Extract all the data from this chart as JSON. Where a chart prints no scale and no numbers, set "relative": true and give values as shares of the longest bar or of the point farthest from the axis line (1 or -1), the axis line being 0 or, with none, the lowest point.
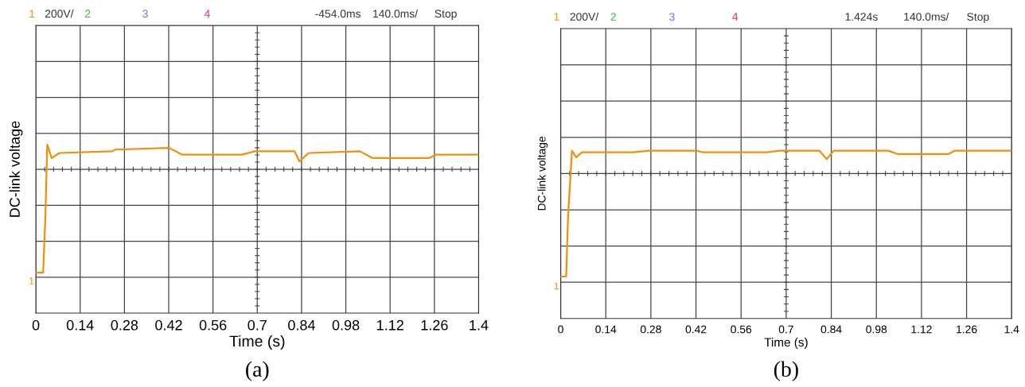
{
  "chart_data": [
    {
      "type": "line",
      "title": "(a)",
      "xlabel": "Time (s)",
      "ylabel": "DC-link voltage",
      "relative": true,
      "tick_labels": "x",
      "grid": true,
      "legend": false,
      "xlim": [
        0,
        1.4
      ],
      "xticks": [
        0,
        0.14,
        0.28,
        0.42,
        0.56,
        0.7,
        0.84,
        0.98,
        1.12,
        1.26,
        1.4
      ],
      "annotations": [
        "1",
        "200V/",
        "2",
        "3",
        "4",
        "-454.0ms",
        "140.0ms/",
        "Stop",
        "1"
      ],
      "series": [
        {
          "color": "#f0900a",
          "x": [
            0,
            0.023,
            0.03,
            0.036,
            0.05,
            0.075,
            0.241,
            0.251,
            0.421,
            0.462,
            0.652,
            0.692,
            0.818,
            0.833,
            0.863,
            1.024,
            1.064,
            1.244,
            1.265,
            1.4
          ],
          "values": [
            0.24,
            0.24,
            0.57,
            1.0,
            0.92,
            0.95,
            0.96,
            0.97,
            0.98,
            0.94,
            0.94,
            0.96,
            0.96,
            0.9,
            0.95,
            0.96,
            0.92,
            0.92,
            0.94,
            0.94
          ]
        }
      ]
    },
    {
      "type": "line",
      "title": "(b)",
      "xlabel": "Time (s)",
      "ylabel": "DC-link voltage",
      "relative": true,
      "tick_labels": "x",
      "grid": true,
      "legend": false,
      "xlim": [
        0,
        1.4
      ],
      "xticks": [
        0,
        0.14,
        0.28,
        0.42,
        0.56,
        0.7,
        0.84,
        0.98,
        1.12,
        1.26,
        1.4
      ],
      "annotations": [
        "1",
        "200V/",
        "2",
        "3",
        "4",
        "1.424s",
        "140.0ms/",
        "Stop",
        "1"
      ],
      "series": [
        {
          "color": "#f0900a",
          "x": [
            0,
            0.017,
            0.023,
            0.035,
            0.048,
            0.066,
            0.225,
            0.274,
            0.422,
            0.442,
            0.64,
            0.68,
            0.803,
            0.826,
            0.848,
            1.016,
            1.046,
            1.204,
            1.224,
            1.4
          ],
          "values": [
            0.25,
            0.25,
            0.61,
            1.0,
            0.96,
            0.99,
            0.99,
            1.0,
            1.0,
            0.99,
            0.99,
            1.0,
            1.0,
            0.95,
            1.0,
            1.0,
            0.98,
            0.98,
            1.0,
            1.0
          ]
        }
      ]
    }
  ]
}
